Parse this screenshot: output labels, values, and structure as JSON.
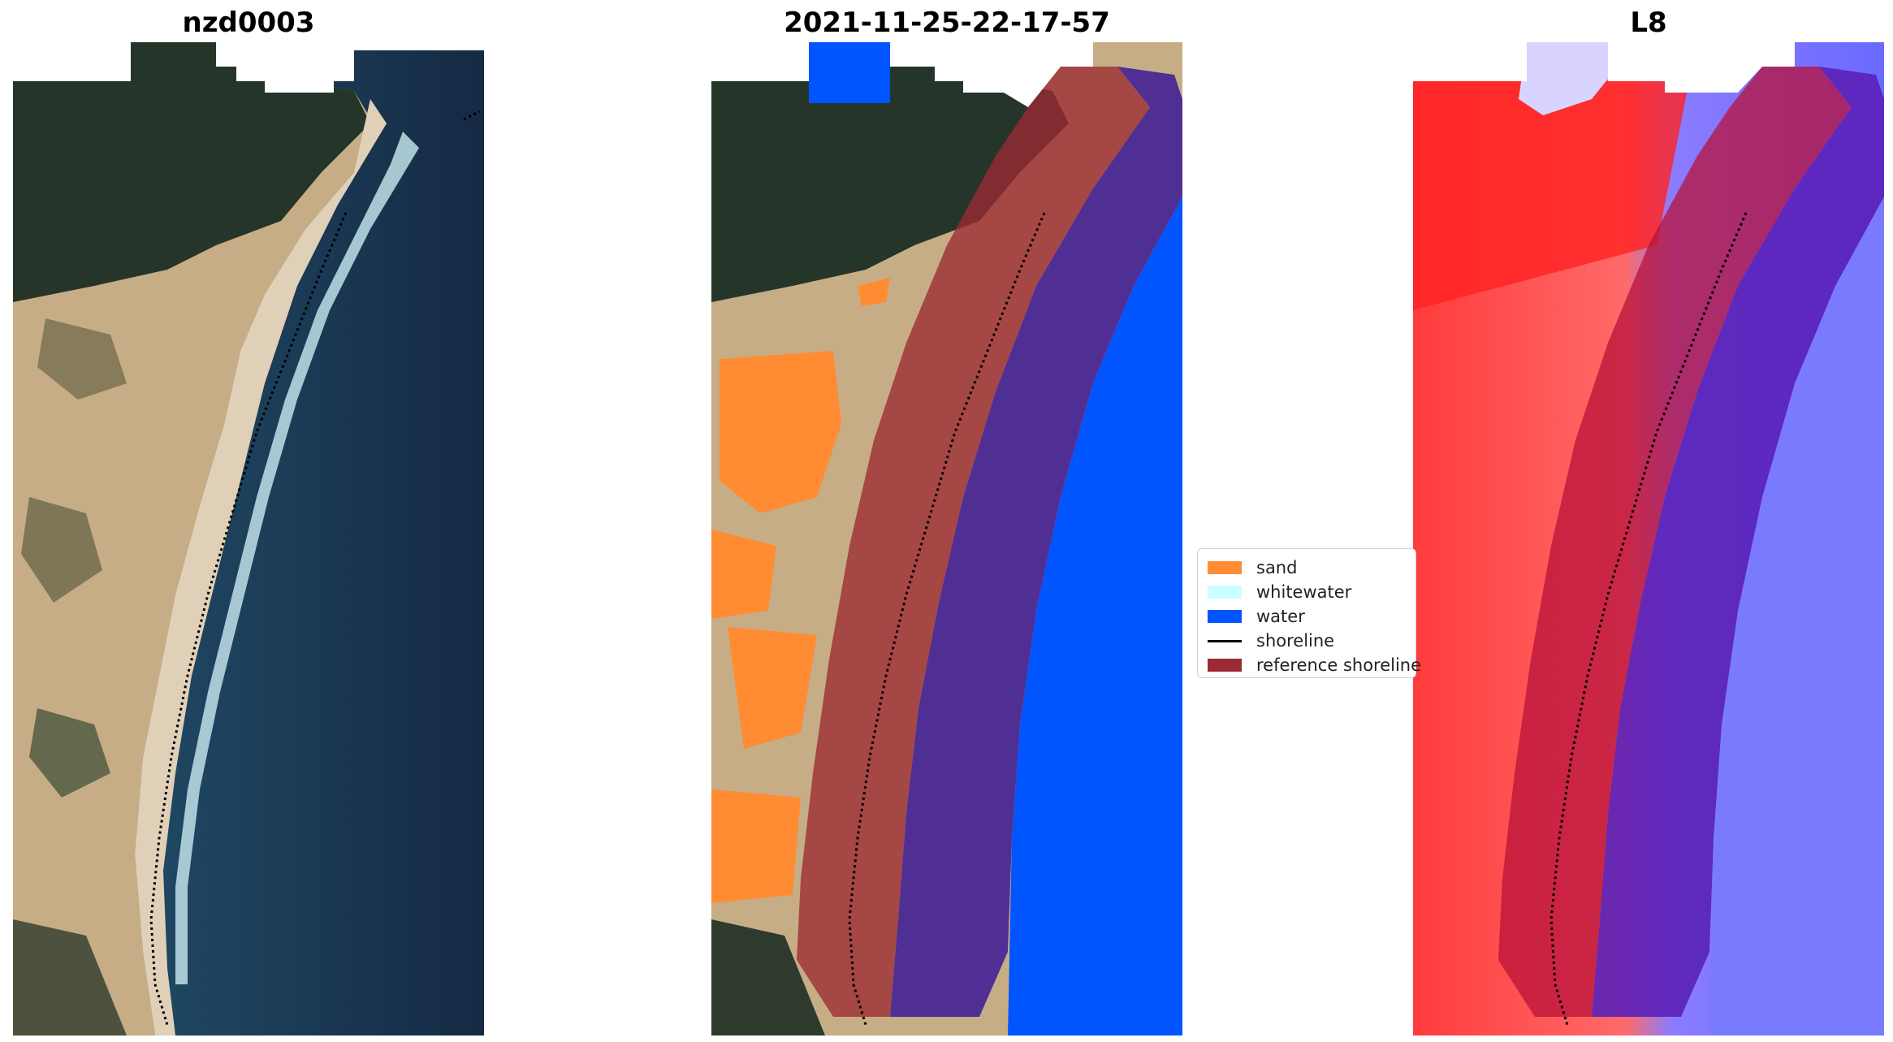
{
  "titles": {
    "left": "nzd0003",
    "middle": "2021-11-25-22-17-57",
    "right": "L8"
  },
  "legend": {
    "items": [
      {
        "label": "sand",
        "color": "#ff8c33",
        "kind": "patch"
      },
      {
        "label": "whitewater",
        "color": "#ccffff",
        "kind": "patch"
      },
      {
        "label": "water",
        "color": "#0055ff",
        "kind": "patch"
      },
      {
        "label": "shoreline",
        "color": "#000000",
        "kind": "line"
      },
      {
        "label": "reference shoreline",
        "color": "#9b2a33",
        "kind": "patch"
      }
    ]
  },
  "colors": {
    "ocean": "#1c3b55",
    "forest": "#2a3a2a",
    "sand_land": "#c9b089",
    "beach": "#e2d2bc",
    "surf": "#cfe8ee",
    "class_water": "#0055ff",
    "class_sand": "#ff8c33",
    "reference_buffer": "#9b2a33",
    "index_land": "#ff4a4a",
    "index_water": "#5a5aff"
  }
}
